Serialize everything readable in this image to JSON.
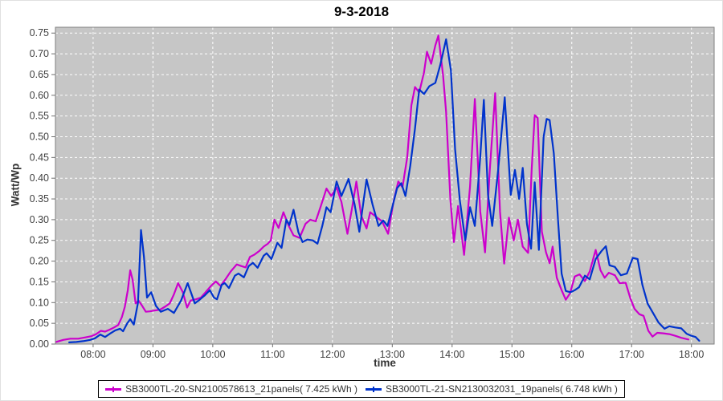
{
  "title": "9-3-2018",
  "chart_data": {
    "type": "line",
    "title": "9-3-2018",
    "xlabel": "time",
    "ylabel": "Watt/Wp",
    "xlim": [
      7.37,
      18.38
    ],
    "ylim": [
      0,
      0.764
    ],
    "y_tick_step": 0.05,
    "y_tick_max": 0.75,
    "x_ticks": [
      "08:00",
      "09:00",
      "10:00",
      "11:00",
      "12:00",
      "13:00",
      "14:00",
      "15:00",
      "16:00",
      "17:00",
      "18:00"
    ],
    "x_tick_hours": [
      8,
      9,
      10,
      11,
      12,
      13,
      14,
      15,
      16,
      17,
      18
    ],
    "grid": true,
    "plot_bg": "#c6c6c6",
    "grid_color": "#ffffff",
    "plot_border_color": "#7f7f7f",
    "tick_label_color": "#3f3f3f",
    "legend_position": "bottom-center",
    "series": [
      {
        "name": "SB3000TL-20-SN2100578613_21panels( 7.425 kWh )",
        "color": "#cc00cc",
        "points": [
          [
            7.38,
            0.005
          ],
          [
            7.5,
            0.01
          ],
          [
            7.62,
            0.013
          ],
          [
            7.75,
            0.013
          ],
          [
            7.87,
            0.016
          ],
          [
            7.97,
            0.019
          ],
          [
            8.05,
            0.024
          ],
          [
            8.13,
            0.032
          ],
          [
            8.2,
            0.03
          ],
          [
            8.28,
            0.035
          ],
          [
            8.35,
            0.04
          ],
          [
            8.42,
            0.046
          ],
          [
            8.48,
            0.065
          ],
          [
            8.53,
            0.09
          ],
          [
            8.58,
            0.13
          ],
          [
            8.62,
            0.178
          ],
          [
            8.66,
            0.155
          ],
          [
            8.71,
            0.098
          ],
          [
            8.76,
            0.105
          ],
          [
            8.82,
            0.092
          ],
          [
            8.88,
            0.078
          ],
          [
            8.95,
            0.079
          ],
          [
            9.03,
            0.081
          ],
          [
            9.12,
            0.083
          ],
          [
            9.2,
            0.09
          ],
          [
            9.28,
            0.098
          ],
          [
            9.35,
            0.12
          ],
          [
            9.42,
            0.147
          ],
          [
            9.5,
            0.125
          ],
          [
            9.57,
            0.088
          ],
          [
            9.63,
            0.105
          ],
          [
            9.72,
            0.108
          ],
          [
            9.8,
            0.112
          ],
          [
            9.88,
            0.125
          ],
          [
            9.97,
            0.14
          ],
          [
            10.05,
            0.151
          ],
          [
            10.13,
            0.14
          ],
          [
            10.22,
            0.158
          ],
          [
            10.3,
            0.175
          ],
          [
            10.4,
            0.192
          ],
          [
            10.48,
            0.188
          ],
          [
            10.55,
            0.185
          ],
          [
            10.62,
            0.21
          ],
          [
            10.7,
            0.216
          ],
          [
            10.78,
            0.225
          ],
          [
            10.85,
            0.235
          ],
          [
            10.92,
            0.242
          ],
          [
            10.97,
            0.25
          ],
          [
            11.03,
            0.3
          ],
          [
            11.1,
            0.28
          ],
          [
            11.18,
            0.318
          ],
          [
            11.27,
            0.285
          ],
          [
            11.35,
            0.262
          ],
          [
            11.45,
            0.256
          ],
          [
            11.55,
            0.29
          ],
          [
            11.63,
            0.3
          ],
          [
            11.72,
            0.296
          ],
          [
            11.8,
            0.33
          ],
          [
            11.9,
            0.375
          ],
          [
            11.98,
            0.357
          ],
          [
            12.07,
            0.378
          ],
          [
            12.15,
            0.343
          ],
          [
            12.25,
            0.266
          ],
          [
            12.33,
            0.33
          ],
          [
            12.4,
            0.392
          ],
          [
            12.48,
            0.31
          ],
          [
            12.57,
            0.279
          ],
          [
            12.63,
            0.318
          ],
          [
            12.72,
            0.308
          ],
          [
            12.83,
            0.296
          ],
          [
            12.93,
            0.266
          ],
          [
            13.02,
            0.343
          ],
          [
            13.1,
            0.392
          ],
          [
            13.17,
            0.378
          ],
          [
            13.25,
            0.45
          ],
          [
            13.32,
            0.576
          ],
          [
            13.38,
            0.62
          ],
          [
            13.45,
            0.607
          ],
          [
            13.53,
            0.655
          ],
          [
            13.58,
            0.705
          ],
          [
            13.65,
            0.676
          ],
          [
            13.72,
            0.72
          ],
          [
            13.77,
            0.744
          ],
          [
            13.85,
            0.647
          ],
          [
            13.9,
            0.56
          ],
          [
            13.97,
            0.35
          ],
          [
            14.03,
            0.246
          ],
          [
            14.1,
            0.333
          ],
          [
            14.2,
            0.215
          ],
          [
            14.3,
            0.38
          ],
          [
            14.38,
            0.591
          ],
          [
            14.47,
            0.32
          ],
          [
            14.55,
            0.221
          ],
          [
            14.63,
            0.42
          ],
          [
            14.72,
            0.605
          ],
          [
            14.8,
            0.32
          ],
          [
            14.87,
            0.194
          ],
          [
            14.95,
            0.305
          ],
          [
            15.03,
            0.25
          ],
          [
            15.1,
            0.3
          ],
          [
            15.18,
            0.235
          ],
          [
            15.27,
            0.22
          ],
          [
            15.33,
            0.42
          ],
          [
            15.38,
            0.552
          ],
          [
            15.43,
            0.545
          ],
          [
            15.5,
            0.271
          ],
          [
            15.57,
            0.221
          ],
          [
            15.63,
            0.195
          ],
          [
            15.68,
            0.235
          ],
          [
            15.75,
            0.16
          ],
          [
            15.83,
            0.13
          ],
          [
            15.9,
            0.107
          ],
          [
            15.97,
            0.122
          ],
          [
            16.05,
            0.163
          ],
          [
            16.13,
            0.168
          ],
          [
            16.22,
            0.152
          ],
          [
            16.3,
            0.175
          ],
          [
            16.4,
            0.227
          ],
          [
            16.48,
            0.178
          ],
          [
            16.55,
            0.16
          ],
          [
            16.62,
            0.172
          ],
          [
            16.72,
            0.166
          ],
          [
            16.8,
            0.147
          ],
          [
            16.9,
            0.148
          ],
          [
            16.98,
            0.11
          ],
          [
            17.05,
            0.085
          ],
          [
            17.13,
            0.072
          ],
          [
            17.2,
            0.068
          ],
          [
            17.28,
            0.032
          ],
          [
            17.35,
            0.018
          ],
          [
            17.43,
            0.027
          ],
          [
            17.53,
            0.026
          ],
          [
            17.63,
            0.024
          ],
          [
            17.73,
            0.02
          ],
          [
            17.83,
            0.015
          ],
          [
            17.95,
            0.011
          ]
        ]
      },
      {
        "name": "SB3000TL-21-SN2130032031_19panels( 6.748 kWh )",
        "color": "#0033cc",
        "points": [
          [
            7.6,
            0.004
          ],
          [
            7.72,
            0.005
          ],
          [
            7.83,
            0.007
          ],
          [
            7.95,
            0.01
          ],
          [
            8.03,
            0.014
          ],
          [
            8.12,
            0.023
          ],
          [
            8.2,
            0.017
          ],
          [
            8.28,
            0.025
          ],
          [
            8.37,
            0.033
          ],
          [
            8.45,
            0.037
          ],
          [
            8.5,
            0.031
          ],
          [
            8.57,
            0.05
          ],
          [
            8.62,
            0.06
          ],
          [
            8.68,
            0.047
          ],
          [
            8.75,
            0.1
          ],
          [
            8.8,
            0.275
          ],
          [
            8.85,
            0.21
          ],
          [
            8.9,
            0.112
          ],
          [
            8.97,
            0.125
          ],
          [
            9.05,
            0.092
          ],
          [
            9.13,
            0.078
          ],
          [
            9.25,
            0.085
          ],
          [
            9.35,
            0.075
          ],
          [
            9.47,
            0.105
          ],
          [
            9.58,
            0.147
          ],
          [
            9.7,
            0.098
          ],
          [
            9.78,
            0.107
          ],
          [
            9.87,
            0.118
          ],
          [
            9.95,
            0.13
          ],
          [
            10.02,
            0.112
          ],
          [
            10.07,
            0.108
          ],
          [
            10.15,
            0.143
          ],
          [
            10.2,
            0.147
          ],
          [
            10.27,
            0.135
          ],
          [
            10.37,
            0.165
          ],
          [
            10.43,
            0.17
          ],
          [
            10.52,
            0.161
          ],
          [
            10.6,
            0.188
          ],
          [
            10.67,
            0.196
          ],
          [
            10.75,
            0.184
          ],
          [
            10.85,
            0.213
          ],
          [
            10.9,
            0.219
          ],
          [
            10.98,
            0.205
          ],
          [
            11.08,
            0.244
          ],
          [
            11.15,
            0.232
          ],
          [
            11.23,
            0.3
          ],
          [
            11.28,
            0.287
          ],
          [
            11.35,
            0.324
          ],
          [
            11.43,
            0.27
          ],
          [
            11.5,
            0.246
          ],
          [
            11.58,
            0.252
          ],
          [
            11.67,
            0.25
          ],
          [
            11.75,
            0.242
          ],
          [
            11.83,
            0.285
          ],
          [
            11.9,
            0.33
          ],
          [
            11.97,
            0.318
          ],
          [
            12.07,
            0.392
          ],
          [
            12.15,
            0.357
          ],
          [
            12.27,
            0.398
          ],
          [
            12.37,
            0.337
          ],
          [
            12.45,
            0.271
          ],
          [
            12.57,
            0.397
          ],
          [
            12.67,
            0.337
          ],
          [
            12.77,
            0.285
          ],
          [
            12.85,
            0.298
          ],
          [
            12.92,
            0.285
          ],
          [
            13.0,
            0.33
          ],
          [
            13.08,
            0.376
          ],
          [
            13.15,
            0.388
          ],
          [
            13.22,
            0.357
          ],
          [
            13.3,
            0.43
          ],
          [
            13.38,
            0.52
          ],
          [
            13.45,
            0.614
          ],
          [
            13.53,
            0.603
          ],
          [
            13.62,
            0.622
          ],
          [
            13.72,
            0.63
          ],
          [
            13.8,
            0.672
          ],
          [
            13.9,
            0.735
          ],
          [
            13.98,
            0.66
          ],
          [
            14.05,
            0.47
          ],
          [
            14.13,
            0.345
          ],
          [
            14.22,
            0.25
          ],
          [
            14.3,
            0.33
          ],
          [
            14.38,
            0.285
          ],
          [
            14.47,
            0.45
          ],
          [
            14.53,
            0.589
          ],
          [
            14.6,
            0.36
          ],
          [
            14.67,
            0.285
          ],
          [
            14.77,
            0.42
          ],
          [
            14.88,
            0.595
          ],
          [
            14.98,
            0.36
          ],
          [
            15.05,
            0.42
          ],
          [
            15.12,
            0.35
          ],
          [
            15.18,
            0.425
          ],
          [
            15.25,
            0.29
          ],
          [
            15.32,
            0.23
          ],
          [
            15.38,
            0.39
          ],
          [
            15.45,
            0.227
          ],
          [
            15.53,
            0.5
          ],
          [
            15.58,
            0.543
          ],
          [
            15.63,
            0.54
          ],
          [
            15.7,
            0.46
          ],
          [
            15.77,
            0.3
          ],
          [
            15.83,
            0.17
          ],
          [
            15.9,
            0.128
          ],
          [
            15.98,
            0.125
          ],
          [
            16.05,
            0.13
          ],
          [
            16.12,
            0.137
          ],
          [
            16.22,
            0.165
          ],
          [
            16.3,
            0.156
          ],
          [
            16.4,
            0.205
          ],
          [
            16.5,
            0.225
          ],
          [
            16.57,
            0.236
          ],
          [
            16.63,
            0.19
          ],
          [
            16.72,
            0.186
          ],
          [
            16.82,
            0.166
          ],
          [
            16.92,
            0.17
          ],
          [
            17.02,
            0.208
          ],
          [
            17.1,
            0.205
          ],
          [
            17.18,
            0.143
          ],
          [
            17.27,
            0.097
          ],
          [
            17.37,
            0.072
          ],
          [
            17.45,
            0.052
          ],
          [
            17.55,
            0.037
          ],
          [
            17.63,
            0.043
          ],
          [
            17.73,
            0.04
          ],
          [
            17.83,
            0.038
          ],
          [
            17.92,
            0.025
          ],
          [
            18.0,
            0.02
          ],
          [
            18.07,
            0.017
          ],
          [
            18.13,
            0.008
          ]
        ]
      }
    ]
  }
}
